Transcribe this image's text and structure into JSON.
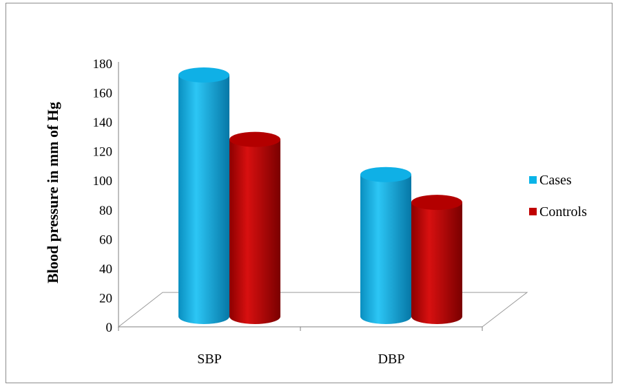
{
  "chart_data": {
    "type": "bar",
    "style": "3d-cylinder",
    "categories": [
      "SBP",
      "DBP"
    ],
    "series": [
      {
        "name": "Cases",
        "values": [
          172,
          104
        ],
        "color": "#0ab4e8"
      },
      {
        "name": "Controls",
        "values": [
          128,
          85
        ],
        "color": "#c00000"
      }
    ],
    "title": "",
    "xlabel": "",
    "ylabel": "Blood pressure in mm of Hg",
    "ylim": [
      0,
      180
    ],
    "yticks": [
      "0",
      "20",
      "40",
      "60",
      "80",
      "100",
      "120",
      "140",
      "160",
      "180"
    ],
    "grid": false,
    "legend_position": "right"
  }
}
